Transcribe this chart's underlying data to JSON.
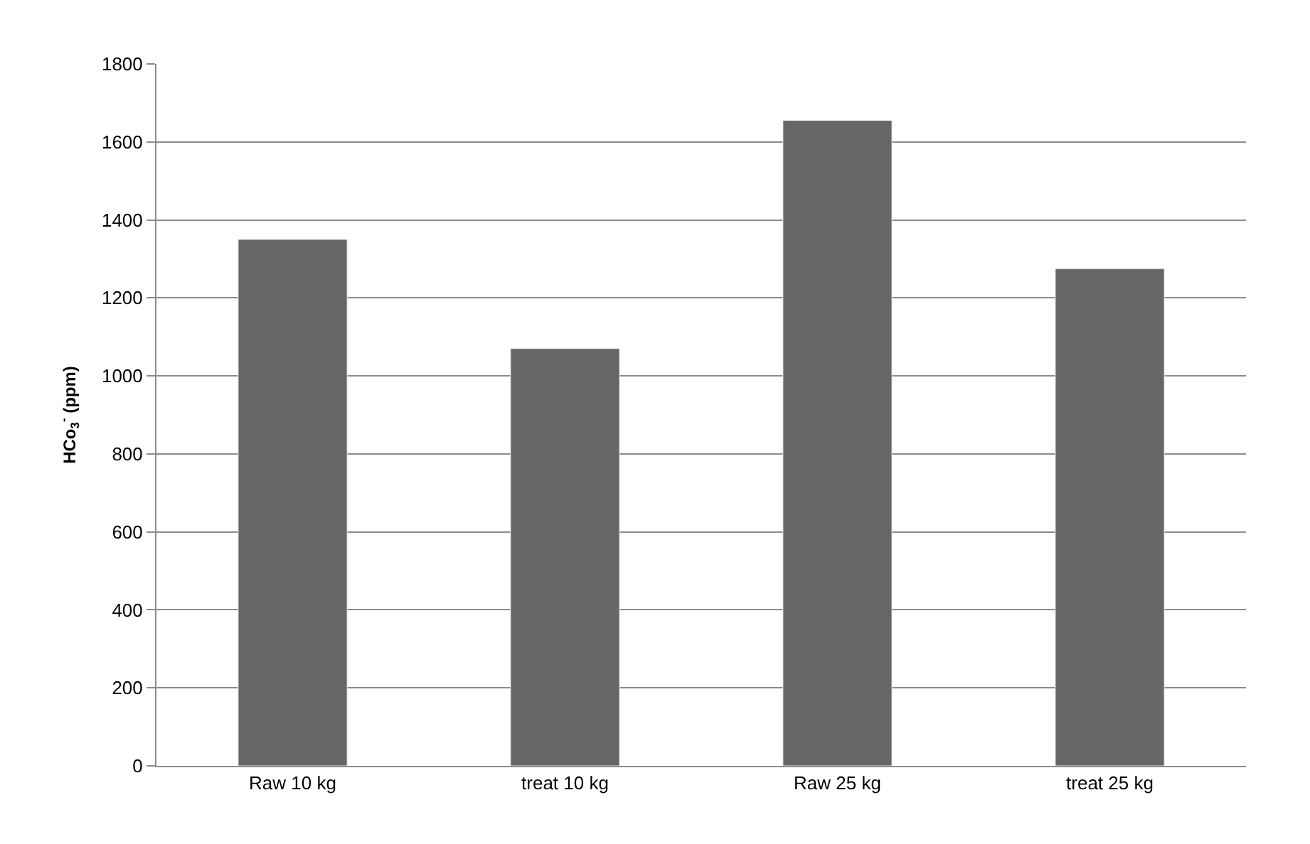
{
  "chart_data": {
    "type": "bar",
    "ylabel": "HCo$_{3}$$^{-}$ (ppm)",
    "categories": [
      "Raw 10 kg",
      "treat 10 kg",
      "Raw 25 kg",
      "treat 25 kg"
    ],
    "values": [
      1350,
      1070,
      1655,
      1275
    ],
    "color": "#666666",
    "ylim": [
      0,
      1800
    ],
    "yticks": [
      0,
      200,
      400,
      600,
      800,
      1000,
      1200,
      1400,
      1600,
      1800
    ],
    "grid": "y",
    "legend": false
  }
}
